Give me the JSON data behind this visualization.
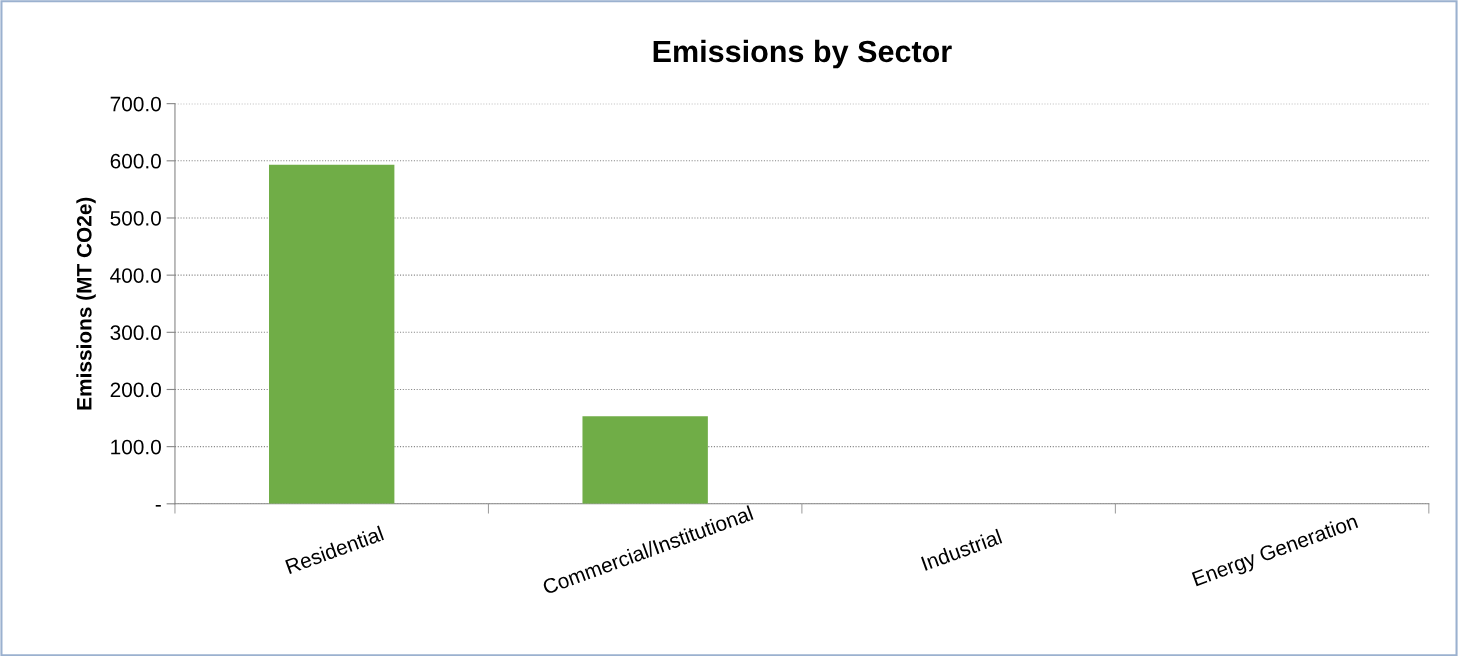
{
  "chart_data": {
    "type": "bar",
    "title": "Emissions by Sector",
    "ylabel": "Emissions (MT CO2e)",
    "categories": [
      "Residential",
      "Commercial/Institutional",
      "Industrial",
      "Energy Generation"
    ],
    "series": [
      {
        "color": "#70ad47",
        "values": [
          593,
          153,
          0,
          0
        ]
      }
    ],
    "ylim": [
      0,
      700
    ],
    "yticks": [
      {
        "value": 0,
        "label": "-"
      },
      {
        "value": 100,
        "label": "100.0"
      },
      {
        "value": 200,
        "label": "200.0"
      },
      {
        "value": 300,
        "label": "300.0"
      },
      {
        "value": 400,
        "label": "400.0"
      },
      {
        "value": 500,
        "label": "500.0"
      },
      {
        "value": 600,
        "label": "600.0"
      },
      {
        "value": 700,
        "label": "700.0"
      }
    ],
    "grid": "y"
  }
}
